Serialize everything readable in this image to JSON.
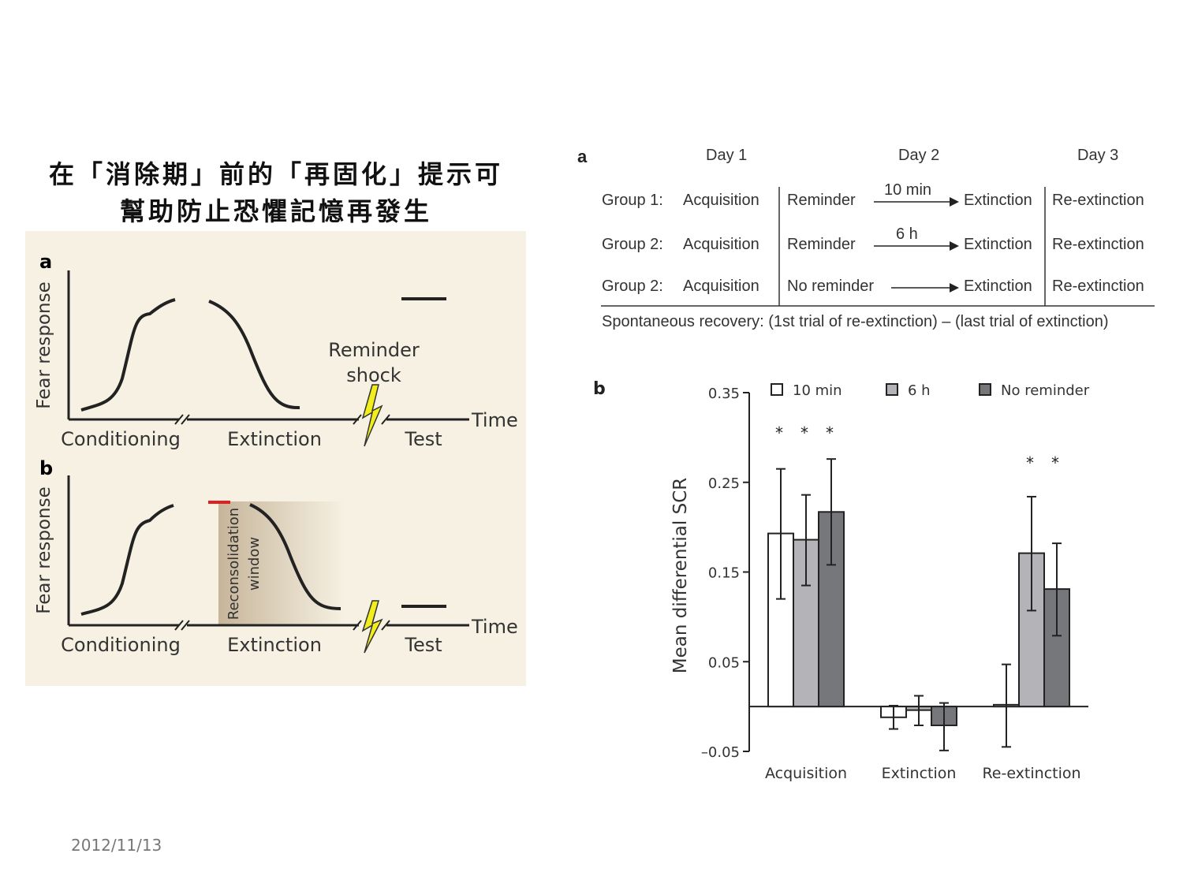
{
  "slide": {
    "title_line1": "在「消除期」前的「再固化」提示可",
    "title_line2": "幫助防止恐懼記憶再發生",
    "date": "2012/11/13"
  },
  "left_figure": {
    "background_color": "#f6f1e3",
    "panel_a": {
      "letter": "a",
      "ylabel": "Fear response",
      "xlabel": "Time",
      "phases": [
        "Conditioning",
        "Extinction",
        "Test"
      ],
      "annotation_line1": "Reminder",
      "annotation_line2": "shock",
      "icon": "lightning-bolt-icon"
    },
    "panel_b": {
      "letter": "b",
      "ylabel": "Fear response",
      "xlabel": "Time",
      "phases": [
        "Conditioning",
        "Extinction",
        "Test"
      ],
      "window_line1": "Reconsolidation",
      "window_line2": "window",
      "marker_color": "#e02020",
      "icon": "lightning-bolt-icon"
    }
  },
  "design_table": {
    "letter": "a",
    "days": [
      "Day 1",
      "Day 2",
      "Day 3"
    ],
    "rows": [
      {
        "group": "Group 1:",
        "day1": "Acquisition",
        "day2": "Reminder",
        "interval": "10 min",
        "day2b": "Extinction",
        "day3": "Re-extinction"
      },
      {
        "group": "Group 2:",
        "day1": "Acquisition",
        "day2": "Reminder",
        "interval": "6 h",
        "day2b": "Extinction",
        "day3": "Re-extinction"
      },
      {
        "group": "Group 2:",
        "day1": "Acquisition",
        "day2": "No reminder",
        "interval": "",
        "day2b": "Extinction",
        "day3": "Re-extinction"
      }
    ],
    "footer": "Spontaneous recovery: (1st trial of re-extinction) – (last trial of extinction)"
  },
  "chart_data": {
    "type": "bar",
    "letter": "b",
    "ylabel": "Mean differential SCR",
    "xlabel": "",
    "ylim": [
      -0.05,
      0.35
    ],
    "yticks": [
      "0.35",
      "0.25",
      "0.15",
      "0.05",
      "–0.05"
    ],
    "ytick_values": [
      0.35,
      0.25,
      0.15,
      0.05,
      -0.05
    ],
    "categories": [
      "Acquisition",
      "Extinction",
      "Re-extinction"
    ],
    "legend_position": "top",
    "grid": false,
    "series": [
      {
        "name": "10 min",
        "color": "#ffffff",
        "values": [
          0.193,
          -0.012,
          0.002
        ],
        "err_low": [
          0.12,
          -0.025,
          -0.045
        ],
        "err_high": [
          0.265,
          0.001,
          0.047
        ],
        "significant": [
          true,
          false,
          false
        ]
      },
      {
        "name": "6 h",
        "color": "#b4b4b8",
        "values": [
          0.186,
          -0.004,
          0.171
        ],
        "err_low": [
          0.135,
          -0.021,
          0.107
        ],
        "err_high": [
          0.236,
          0.012,
          0.234
        ],
        "significant": [
          true,
          false,
          true
        ]
      },
      {
        "name": "No reminder",
        "color": "#76777b",
        "values": [
          0.217,
          -0.021,
          0.131
        ],
        "err_low": [
          0.158,
          -0.049,
          0.079
        ],
        "err_high": [
          0.276,
          0.004,
          0.182
        ],
        "significant": [
          true,
          false,
          true
        ]
      }
    ],
    "significance_marker": "*"
  }
}
